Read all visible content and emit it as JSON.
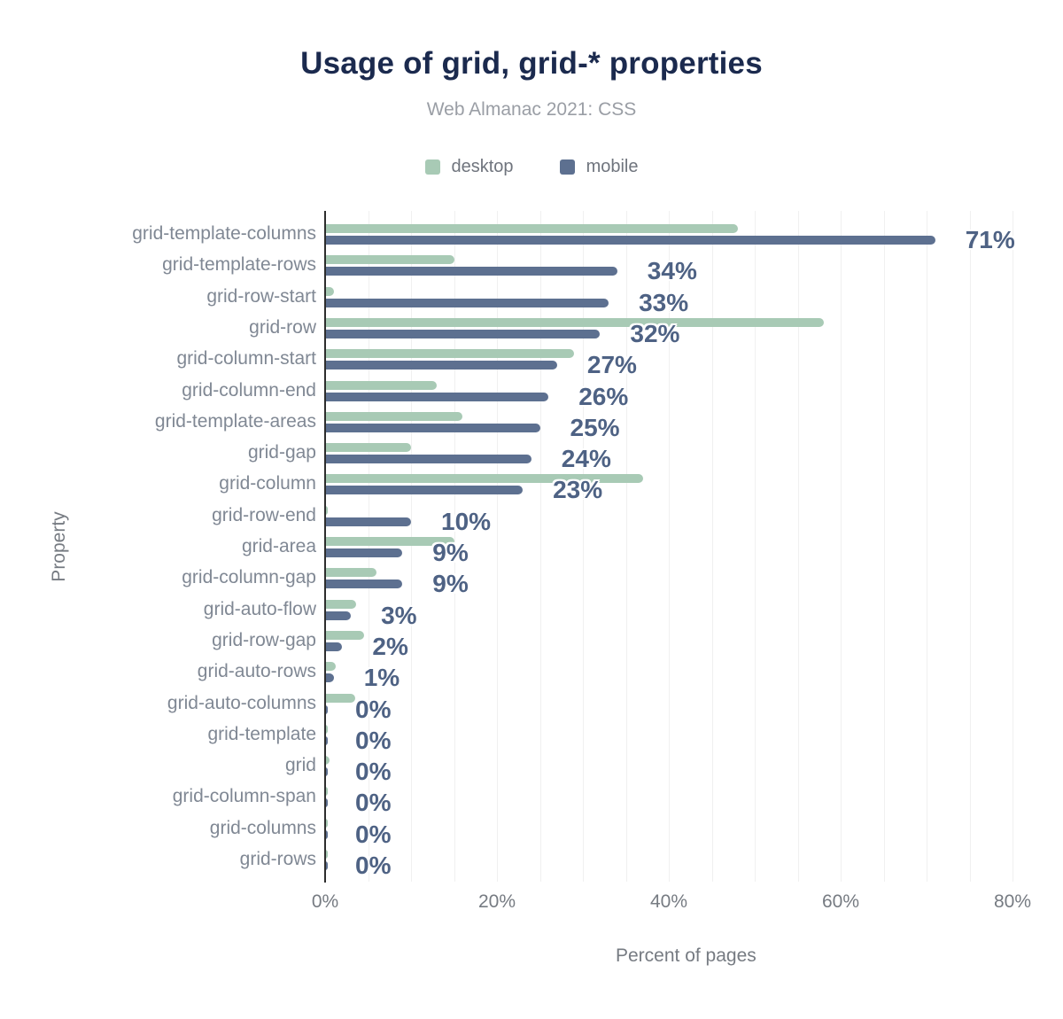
{
  "header": {
    "title": "Usage of grid, grid-* properties",
    "subtitle": "Web Almanac 2021: CSS"
  },
  "axes": {
    "x_label": "Percent of pages",
    "y_label": "Property",
    "x_ticks": [
      "0%",
      "20%",
      "40%",
      "60%",
      "80%"
    ]
  },
  "colors": {
    "desktop": "#a8cab5",
    "mobile": "#5d7090",
    "title": "#1b2a4e",
    "value_label": "#4e6284",
    "axis_line": "#2d2d2d",
    "gridline": "#f0f0f0"
  },
  "chart_data": {
    "type": "bar",
    "orientation": "horizontal",
    "title": "Usage of grid, grid-* properties",
    "subtitle": "Web Almanac 2021: CSS",
    "xlabel": "Percent of pages",
    "ylabel": "Property",
    "xlim": [
      0,
      80
    ],
    "x_tick_values": [
      0,
      20,
      40,
      60,
      80
    ],
    "grid": "vertical gridlines every 5%",
    "legend_position": "top",
    "data_labels": "mobile series only, bold, right of bar",
    "categories": [
      "grid-template-columns",
      "grid-template-rows",
      "grid-row-start",
      "grid-row",
      "grid-column-start",
      "grid-column-end",
      "grid-template-areas",
      "grid-gap",
      "grid-column",
      "grid-row-end",
      "grid-area",
      "grid-column-gap",
      "grid-auto-flow",
      "grid-row-gap",
      "grid-auto-rows",
      "grid-auto-columns",
      "grid-template",
      "grid",
      "grid-column-span",
      "grid-columns",
      "grid-rows"
    ],
    "series": [
      {
        "name": "desktop",
        "color": "#a8cab5",
        "values": [
          48,
          15,
          1,
          58,
          29,
          13,
          16,
          10,
          37,
          0.3,
          15,
          6,
          3.6,
          4.5,
          1.2,
          3.5,
          0.2,
          0.5,
          0.2,
          0.1,
          0.1
        ]
      },
      {
        "name": "mobile",
        "color": "#5d7090",
        "values": [
          71,
          34,
          33,
          32,
          27,
          26,
          25,
          24,
          23,
          10,
          9,
          9,
          3,
          2,
          1,
          0,
          0,
          0,
          0,
          0,
          0
        ],
        "labels": [
          "71%",
          "34%",
          "33%",
          "32%",
          "27%",
          "26%",
          "25%",
          "24%",
          "23%",
          "10%",
          "9%",
          "9%",
          "3%",
          "2%",
          "1%",
          "0%",
          "0%",
          "0%",
          "0%",
          "0%",
          "0%"
        ]
      }
    ]
  }
}
